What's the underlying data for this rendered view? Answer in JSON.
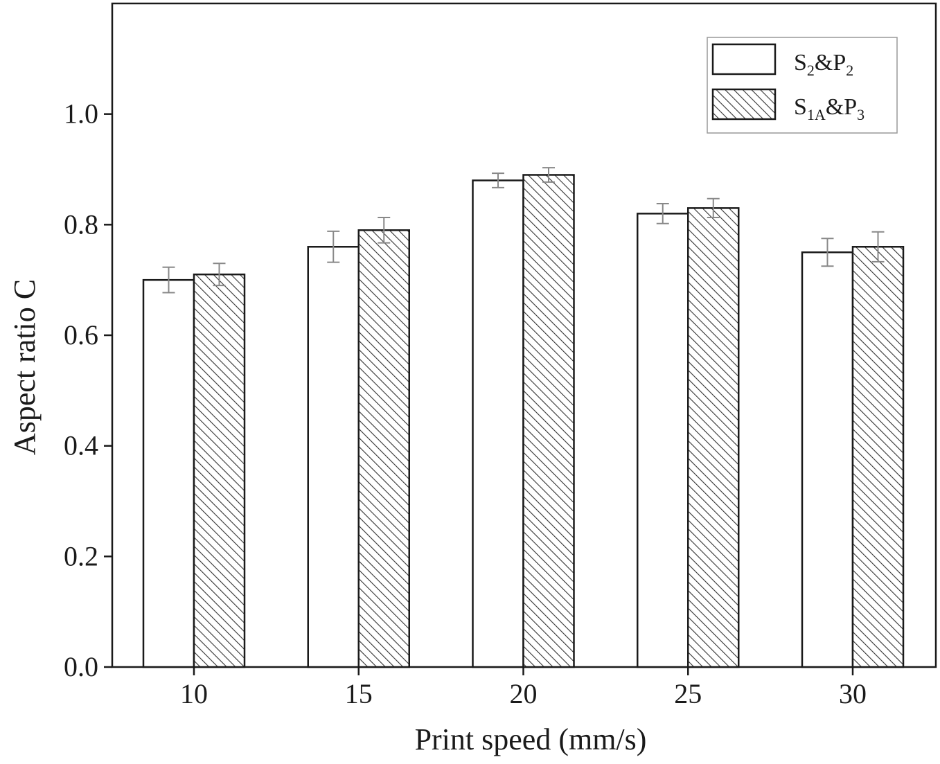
{
  "chart_data": {
    "type": "bar",
    "title": "",
    "xlabel": "Print speed  (mm/s)",
    "ylabel": "Aspect ratio   C",
    "categories": [
      "10",
      "15",
      "20",
      "25",
      "30"
    ],
    "ylim": [
      0.0,
      1.2
    ],
    "yticks": [
      0.0,
      0.2,
      0.4,
      0.6,
      0.8,
      1.0
    ],
    "ytick_labels": [
      "0.0",
      "0.2",
      "0.4",
      "0.6",
      "0.8",
      "1.0"
    ],
    "grid": false,
    "legend_position": "top-right",
    "series": [
      {
        "name": "S2&P2",
        "legend_main": "S",
        "legend_sub1": "2",
        "legend_mid": "&P",
        "legend_sub2": "2",
        "pattern": "none",
        "values": [
          0.7,
          0.76,
          0.88,
          0.82,
          0.75
        ],
        "errors": [
          0.023,
          0.028,
          0.013,
          0.018,
          0.025
        ]
      },
      {
        "name": "S1A&P3",
        "legend_main": "S",
        "legend_sub1": "1A",
        "legend_mid": "&P",
        "legend_sub2": "3",
        "pattern": "diagonal-hatch",
        "values": [
          0.71,
          0.79,
          0.89,
          0.83,
          0.76
        ],
        "errors": [
          0.02,
          0.023,
          0.013,
          0.017,
          0.027
        ]
      }
    ],
    "colors": {
      "bar_fill": "#ffffff",
      "stroke": "#1a1a1a",
      "hatch": "#333333",
      "error_bar": "#888888"
    }
  }
}
